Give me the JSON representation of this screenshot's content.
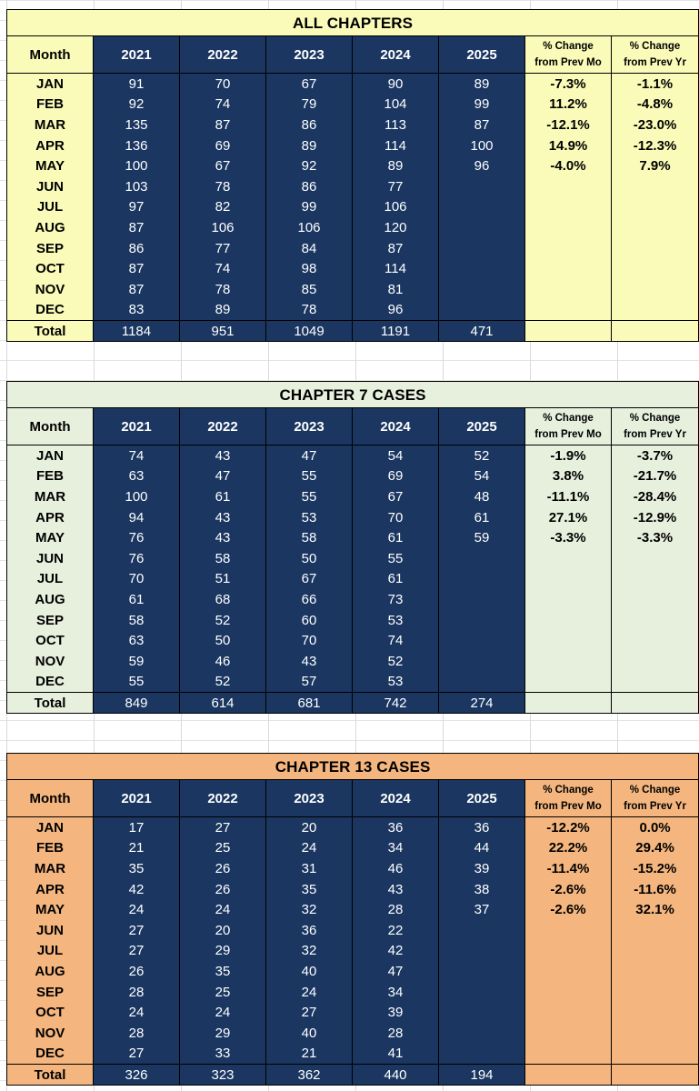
{
  "columns": {
    "month": "Month",
    "years": [
      "2021",
      "2022",
      "2023",
      "2024",
      "2025"
    ],
    "pct_prev_mo_line1": "% Change",
    "pct_prev_mo_line2": "from Prev Mo",
    "pct_prev_yr_line1": "% Change",
    "pct_prev_yr_line2": "from Prev Yr"
  },
  "months": [
    "JAN",
    "FEB",
    "MAR",
    "APR",
    "MAY",
    "JUN",
    "JUL",
    "AUG",
    "SEP",
    "OCT",
    "NOV",
    "DEC"
  ],
  "total_label": "Total",
  "tables": [
    {
      "title": "ALL CHAPTERS",
      "rows": [
        [
          "91",
          "70",
          "67",
          "90",
          "89",
          "-7.3%",
          "-1.1%"
        ],
        [
          "92",
          "74",
          "79",
          "104",
          "99",
          "11.2%",
          "-4.8%"
        ],
        [
          "135",
          "87",
          "86",
          "113",
          "87",
          "-12.1%",
          "-23.0%"
        ],
        [
          "136",
          "69",
          "89",
          "114",
          "100",
          "14.9%",
          "-12.3%"
        ],
        [
          "100",
          "67",
          "92",
          "89",
          "96",
          "-4.0%",
          "7.9%"
        ],
        [
          "103",
          "78",
          "86",
          "77",
          "",
          "",
          ""
        ],
        [
          "97",
          "82",
          "99",
          "106",
          "",
          "",
          ""
        ],
        [
          "87",
          "106",
          "106",
          "120",
          "",
          "",
          ""
        ],
        [
          "86",
          "77",
          "84",
          "87",
          "",
          "",
          ""
        ],
        [
          "87",
          "74",
          "98",
          "114",
          "",
          "",
          ""
        ],
        [
          "87",
          "78",
          "85",
          "81",
          "",
          "",
          ""
        ],
        [
          "83",
          "89",
          "78",
          "96",
          "",
          "",
          ""
        ]
      ],
      "totals": [
        "1184",
        "951",
        "1049",
        "1191",
        "471",
        "",
        ""
      ]
    },
    {
      "title": "CHAPTER 7 CASES",
      "rows": [
        [
          "74",
          "43",
          "47",
          "54",
          "52",
          "-1.9%",
          "-3.7%"
        ],
        [
          "63",
          "47",
          "55",
          "69",
          "54",
          "3.8%",
          "-21.7%"
        ],
        [
          "100",
          "61",
          "55",
          "67",
          "48",
          "-11.1%",
          "-28.4%"
        ],
        [
          "94",
          "43",
          "53",
          "70",
          "61",
          "27.1%",
          "-12.9%"
        ],
        [
          "76",
          "43",
          "58",
          "61",
          "59",
          "-3.3%",
          "-3.3%"
        ],
        [
          "76",
          "58",
          "50",
          "55",
          "",
          "",
          ""
        ],
        [
          "70",
          "51",
          "67",
          "61",
          "",
          "",
          ""
        ],
        [
          "61",
          "68",
          "66",
          "73",
          "",
          "",
          ""
        ],
        [
          "58",
          "52",
          "60",
          "53",
          "",
          "",
          ""
        ],
        [
          "63",
          "50",
          "70",
          "74",
          "",
          "",
          ""
        ],
        [
          "59",
          "46",
          "43",
          "52",
          "",
          "",
          ""
        ],
        [
          "55",
          "52",
          "57",
          "53",
          "",
          "",
          ""
        ]
      ],
      "totals": [
        "849",
        "614",
        "681",
        "742",
        "274",
        "",
        ""
      ]
    },
    {
      "title": "CHAPTER 13 CASES",
      "rows": [
        [
          "17",
          "27",
          "20",
          "36",
          "36",
          "-12.2%",
          "0.0%"
        ],
        [
          "21",
          "25",
          "24",
          "34",
          "44",
          "22.2%",
          "29.4%"
        ],
        [
          "35",
          "26",
          "31",
          "46",
          "39",
          "-11.4%",
          "-15.2%"
        ],
        [
          "42",
          "26",
          "35",
          "43",
          "38",
          "-2.6%",
          "-11.6%"
        ],
        [
          "24",
          "24",
          "32",
          "28",
          "37",
          "-2.6%",
          "32.1%"
        ],
        [
          "27",
          "20",
          "36",
          "22",
          "",
          "",
          ""
        ],
        [
          "27",
          "29",
          "32",
          "42",
          "",
          "",
          ""
        ],
        [
          "26",
          "35",
          "40",
          "47",
          "",
          "",
          ""
        ],
        [
          "28",
          "25",
          "24",
          "34",
          "",
          "",
          ""
        ],
        [
          "24",
          "24",
          "27",
          "39",
          "",
          "",
          ""
        ],
        [
          "28",
          "29",
          "40",
          "28",
          "",
          "",
          ""
        ],
        [
          "27",
          "33",
          "21",
          "41",
          "",
          "",
          ""
        ]
      ],
      "totals": [
        "326",
        "323",
        "362",
        "440",
        "194",
        "",
        ""
      ]
    }
  ]
}
